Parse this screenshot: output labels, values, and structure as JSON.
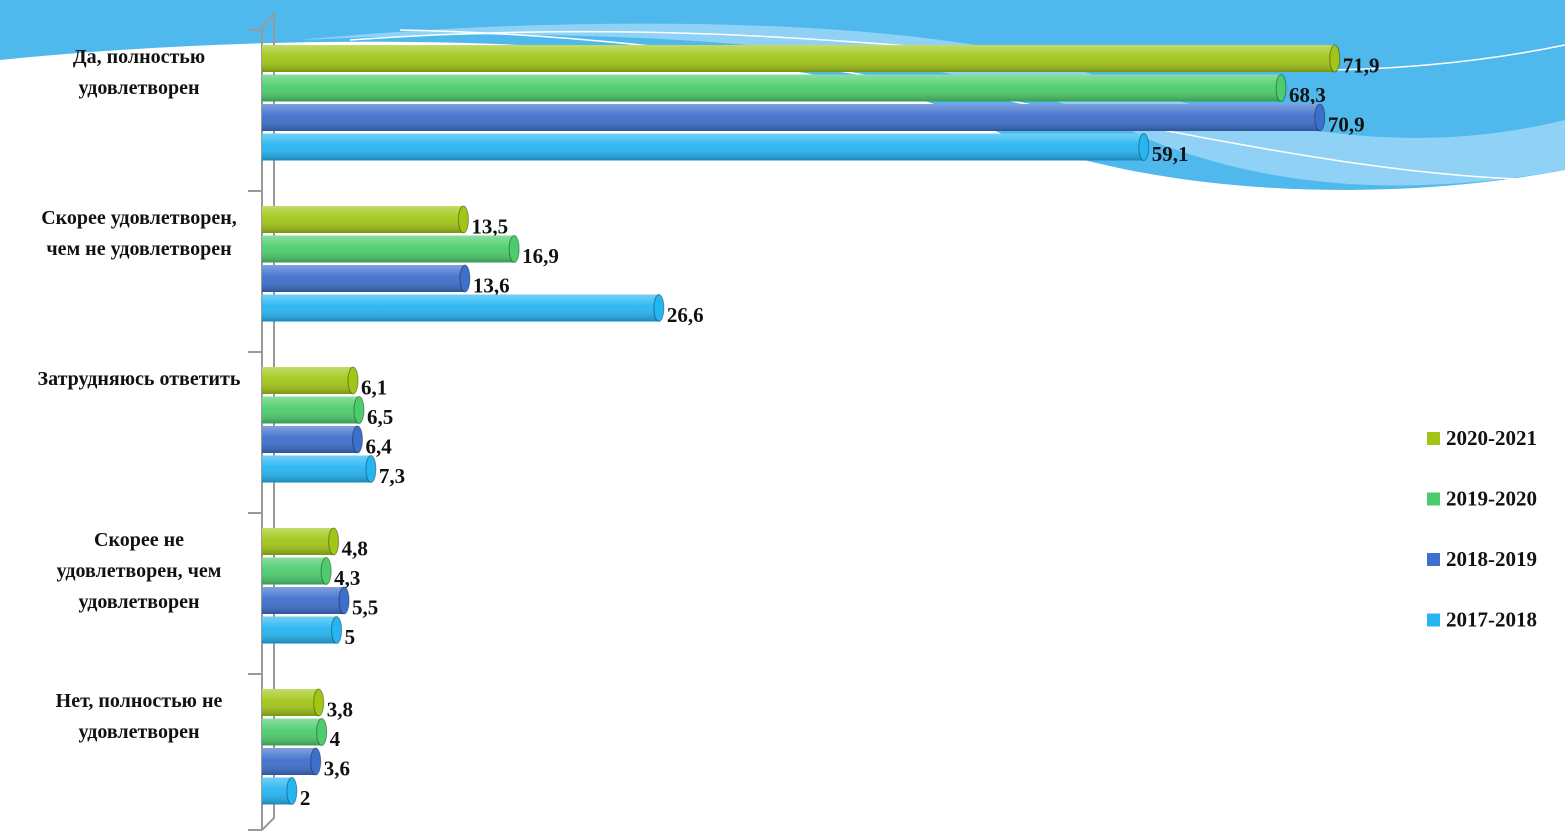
{
  "chart_data": {
    "type": "bar",
    "orientation": "horizontal",
    "categories": [
      "Да, полностью удовлетворен",
      "Скорее удовлетворен, чем не удовлетворен",
      "Затрудняюсь ответить",
      "Скорее не удовлетворен, чем удовлетворен",
      "Нет, полностью не удовлетворен"
    ],
    "series": [
      {
        "name": "2020-2021",
        "color": "#a2c617",
        "values": [
          71.9,
          13.5,
          6.1,
          4.8,
          3.8
        ],
        "value_labels": [
          "71,9",
          "13,5",
          "6,1",
          "4,8",
          "3,8"
        ]
      },
      {
        "name": "2019-2020",
        "color": "#4ccc6c",
        "values": [
          68.3,
          16.9,
          6.5,
          4.3,
          4
        ],
        "value_labels": [
          "68,3",
          "16,9",
          "6,5",
          "4,3",
          "4"
        ]
      },
      {
        "name": "2018-2019",
        "color": "#3d6fcc",
        "values": [
          70.9,
          13.6,
          6.4,
          5.5,
          3.6
        ],
        "value_labels": [
          "70,9",
          "13,6",
          "6,4",
          "5,5",
          "3,6"
        ]
      },
      {
        "name": "2017-2018",
        "color": "#25b5f2",
        "values": [
          59.1,
          26.6,
          7.3,
          5,
          2
        ],
        "value_labels": [
          "59,1",
          "26,6",
          "7,3",
          "5",
          "2"
        ]
      }
    ],
    "legend": "right"
  }
}
